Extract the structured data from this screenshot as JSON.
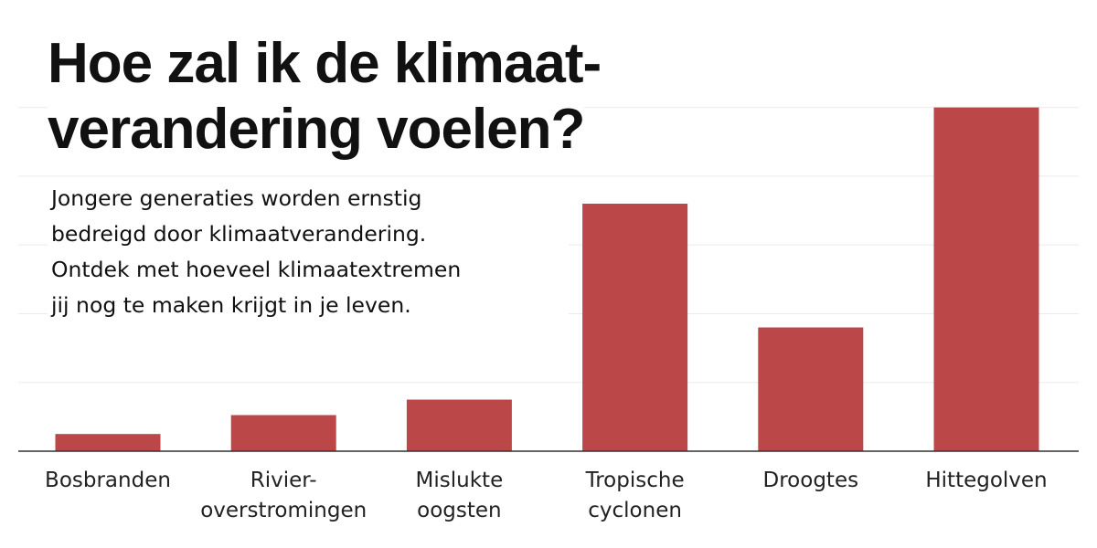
{
  "title_lines": [
    "Hoe zal ik de klimaat-",
    "verandering voelen?"
  ],
  "subtitle_lines": [
    "Jongere generaties worden ernstig",
    "bedreigd door klimaatverandering.",
    "Ontdek met hoeveel klimaatextremen",
    "jij nog te maken krijgt in je leven."
  ],
  "colors": {
    "bar": "#bc4749",
    "gridline": "#ebebeb",
    "baseline": "#333333"
  },
  "chart_data": {
    "type": "bar",
    "title": "Hoe zal ik de klimaat- verandering voelen?",
    "categories": [
      [
        "Bosbranden"
      ],
      [
        "Rivier-",
        "overstromingen"
      ],
      [
        "Mislukte",
        "oogsten"
      ],
      [
        "Tropische",
        "cyclonen"
      ],
      [
        "Droogtes"
      ],
      [
        "Hittegolven"
      ]
    ],
    "values": [
      0.5,
      1.05,
      1.5,
      7.2,
      3.6,
      10
    ],
    "ylim": [
      0,
      11
    ],
    "grid": true,
    "xlabel": "",
    "ylabel": ""
  }
}
